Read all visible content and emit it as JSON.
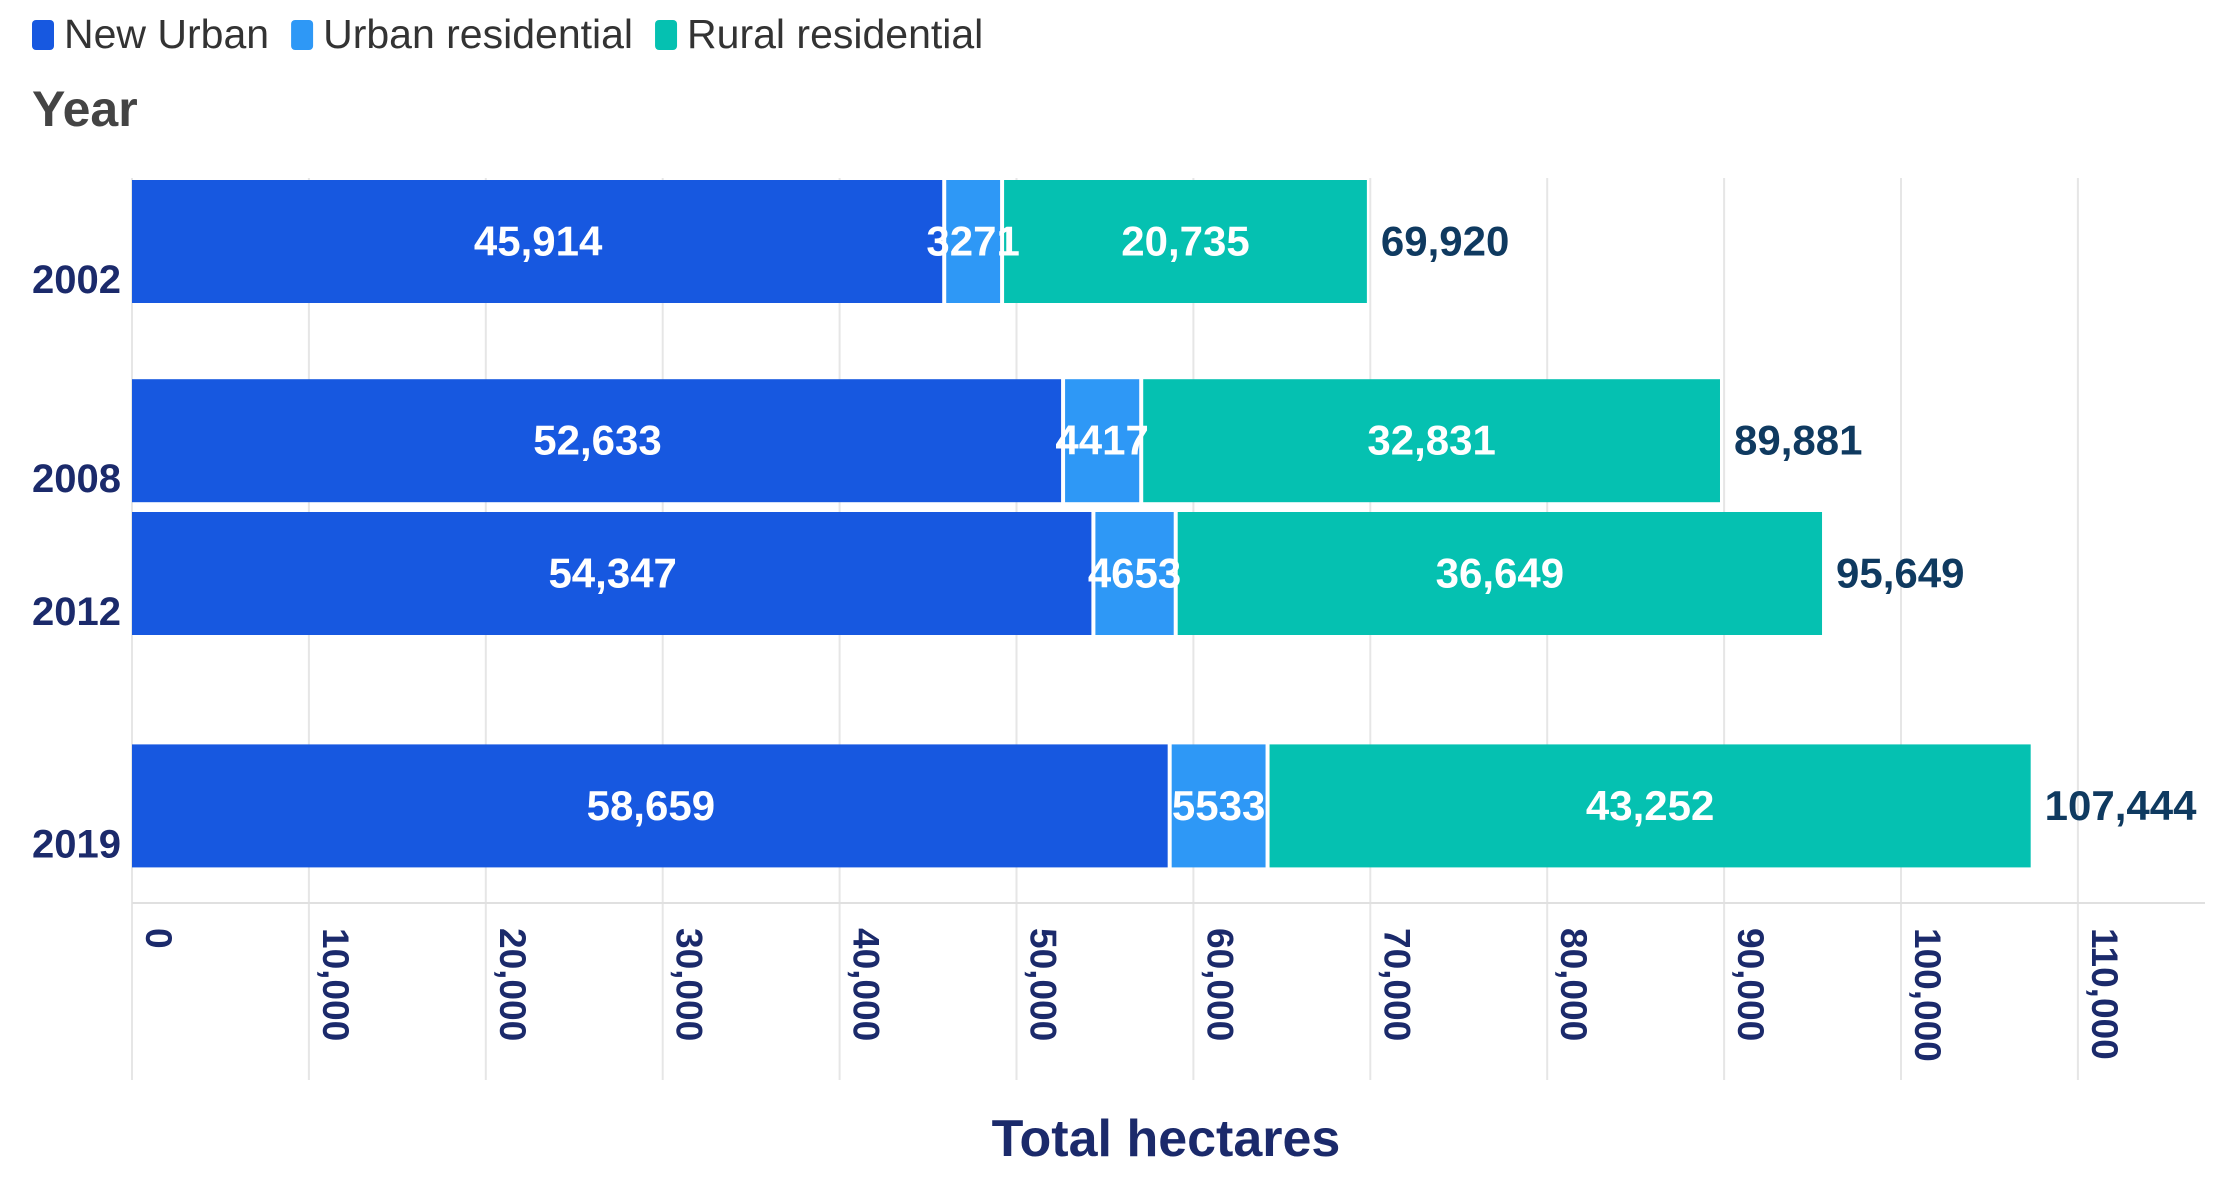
{
  "chart_data": {
    "type": "bar",
    "orientation": "horizontal",
    "stacked": true,
    "legend": {
      "position": "top-left",
      "entries": [
        "New Urban",
        "Urban residential",
        "Rural residential"
      ]
    },
    "ylabel": "Year",
    "xlabel": "Total hectares",
    "categories": [
      "2002",
      "2008",
      "2012",
      "2019"
    ],
    "category_positions": [
      2002,
      2008,
      2012,
      2019
    ],
    "series": [
      {
        "name": "New Urban",
        "color": "#1758e0",
        "values": [
          45914,
          52633,
          54347,
          58659
        ],
        "labels": [
          "45,914",
          "52,633",
          "54,347",
          "58,659"
        ]
      },
      {
        "name": "Urban residential",
        "color": "#2e98f6",
        "values": [
          3271,
          4417,
          4653,
          5533
        ],
        "labels": [
          "3271",
          "4417",
          "4653",
          "5533"
        ]
      },
      {
        "name": "Rural residential",
        "color": "#05c1b1",
        "values": [
          20735,
          32831,
          36649,
          43252
        ],
        "labels": [
          "20,735",
          "32,831",
          "36,649",
          "43,252"
        ]
      }
    ],
    "totals": [
      69920,
      89881,
      95649,
      107444
    ],
    "total_labels": [
      "69,920",
      "89,881",
      "95,649",
      "107,444"
    ],
    "xlim": [
      0,
      115000
    ],
    "xticks": [
      0,
      10000,
      20000,
      30000,
      40000,
      50000,
      60000,
      70000,
      80000,
      90000,
      100000,
      110000
    ],
    "xtick_labels": [
      "0",
      "10,000",
      "20,000",
      "30,000",
      "40,000",
      "50,000",
      "60,000",
      "70,000",
      "80,000",
      "90,000",
      "100,000",
      "110,000"
    ],
    "grid": true,
    "colors": {
      "axis_text": "#1b2a6b",
      "title_text": "#444444",
      "total_text": "#0f3a60",
      "grid": "#e6e6e6"
    }
  }
}
